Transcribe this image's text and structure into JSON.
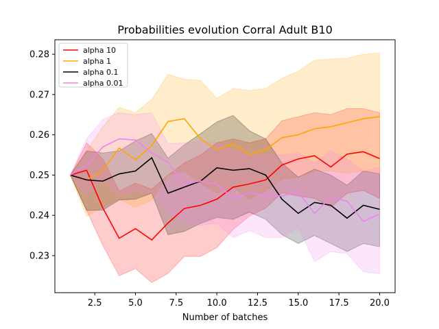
{
  "chart_data": {
    "type": "line",
    "title": "Probabilities evolution Corral Adult B10",
    "xlabel": "Number of batches",
    "ylabel": "",
    "xlim": [
      0.05,
      20.95
    ],
    "ylim": [
      0.2208,
      0.2836
    ],
    "xticks": [
      2.5,
      5.0,
      7.5,
      10.0,
      12.5,
      15.0,
      17.5,
      20.0
    ],
    "xtick_labels": [
      "2.5",
      "5.0",
      "7.5",
      "10.0",
      "12.5",
      "15.0",
      "17.5",
      "20.0"
    ],
    "yticks": [
      0.23,
      0.24,
      0.25,
      0.26,
      0.27,
      0.28
    ],
    "ytick_labels": [
      "0.23",
      "0.24",
      "0.25",
      "0.26",
      "0.27",
      "0.28"
    ],
    "grid": false,
    "legend_position": "top-left",
    "x": [
      1,
      2,
      3,
      4,
      5,
      6,
      7,
      8,
      9,
      10,
      11,
      12,
      13,
      14,
      15,
      16,
      17,
      18,
      19,
      20
    ],
    "series": [
      {
        "name": "alpha 10",
        "color": "#ff0000",
        "values": [
          0.25,
          0.2512,
          0.2418,
          0.2343,
          0.2367,
          0.2339,
          0.2381,
          0.2417,
          0.2425,
          0.244,
          0.247,
          0.2478,
          0.2488,
          0.2525,
          0.254,
          0.2548,
          0.252,
          0.2552,
          0.2558,
          0.2541
        ],
        "lower": [
          0.25,
          0.2412,
          0.2325,
          0.225,
          0.2268,
          0.2233,
          0.2256,
          0.2298,
          0.2298,
          0.232,
          0.2365,
          0.2398,
          0.2418,
          0.2456,
          0.2448,
          0.2442,
          0.242,
          0.2455,
          0.2462,
          0.2442
        ],
        "upper": [
          0.25,
          0.258,
          0.254,
          0.246,
          0.248,
          0.2465,
          0.25,
          0.253,
          0.255,
          0.258,
          0.259,
          0.258,
          0.259,
          0.2635,
          0.2645,
          0.2655,
          0.265,
          0.2665,
          0.2665,
          0.2655
        ]
      },
      {
        "name": "alpha 1",
        "color": "#ffa500",
        "values": [
          0.25,
          0.2488,
          0.2512,
          0.2567,
          0.2538,
          0.2573,
          0.2633,
          0.264,
          0.259,
          0.2563,
          0.2577,
          0.2551,
          0.2563,
          0.2593,
          0.26,
          0.2615,
          0.262,
          0.263,
          0.264,
          0.2645
        ],
        "lower": [
          0.25,
          0.2398,
          0.242,
          0.244,
          0.242,
          0.2438,
          0.25,
          0.251,
          0.248,
          0.2455,
          0.247,
          0.244,
          0.246,
          0.249,
          0.2495,
          0.251,
          0.251,
          0.2505,
          0.251,
          0.2505
        ],
        "upper": [
          0.25,
          0.256,
          0.262,
          0.2668,
          0.2655,
          0.2688,
          0.275,
          0.2738,
          0.2735,
          0.269,
          0.2715,
          0.271,
          0.2715,
          0.274,
          0.2758,
          0.2785,
          0.2788,
          0.279,
          0.28,
          0.2803
        ]
      },
      {
        "name": "alpha 0.1",
        "color": "#000000",
        "values": [
          0.25,
          0.2488,
          0.2485,
          0.2503,
          0.251,
          0.2543,
          0.2455,
          0.247,
          0.2485,
          0.2518,
          0.2512,
          0.2516,
          0.25,
          0.244,
          0.2405,
          0.2432,
          0.2425,
          0.2393,
          0.2425,
          0.2415
        ],
        "lower": [
          0.25,
          0.2412,
          0.2413,
          0.2438,
          0.244,
          0.2455,
          0.2352,
          0.236,
          0.238,
          0.2395,
          0.239,
          0.2408,
          0.239,
          0.2352,
          0.233,
          0.235,
          0.233,
          0.231,
          0.233,
          0.2322
        ],
        "upper": [
          0.25,
          0.256,
          0.2555,
          0.256,
          0.2585,
          0.2603,
          0.2542,
          0.2575,
          0.2603,
          0.2632,
          0.2648,
          0.261,
          0.259,
          0.253,
          0.2495,
          0.2515,
          0.25,
          0.2475,
          0.251,
          0.2503
        ]
      },
      {
        "name": "alpha 0.01",
        "color": "#ee82ee",
        "values": [
          0.25,
          0.2525,
          0.257,
          0.259,
          0.2587,
          0.2555,
          0.2532,
          0.2478,
          0.2485,
          0.2478,
          0.2442,
          0.2456,
          0.245,
          0.2448,
          0.2458,
          0.2405,
          0.2445,
          0.2435,
          0.2385,
          0.2403
        ],
        "lower": [
          0.25,
          0.245,
          0.249,
          0.245,
          0.246,
          0.2455,
          0.2405,
          0.2383,
          0.2375,
          0.238,
          0.2345,
          0.2362,
          0.2345,
          0.2345,
          0.237,
          0.2285,
          0.231,
          0.2305,
          0.226,
          0.2255
        ],
        "upper": [
          0.25,
          0.259,
          0.2638,
          0.2655,
          0.265,
          0.2655,
          0.2578,
          0.258,
          0.2585,
          0.258,
          0.256,
          0.255,
          0.255,
          0.255,
          0.2555,
          0.253,
          0.256,
          0.254,
          0.251,
          0.252
        ]
      }
    ]
  }
}
